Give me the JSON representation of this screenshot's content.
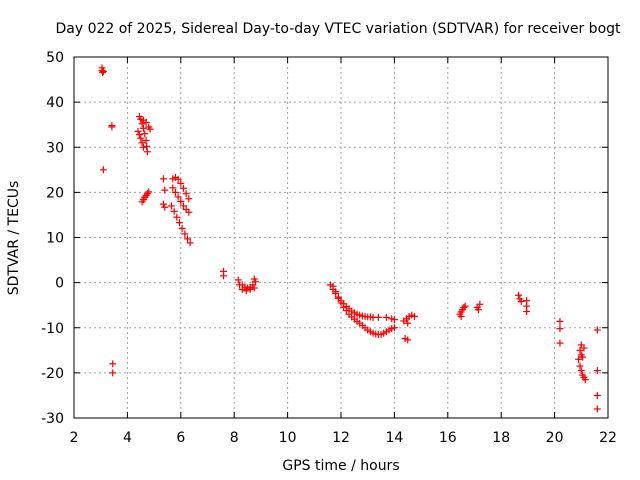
{
  "chart_data": {
    "type": "scatter",
    "title": "Day 022 of 2025, Sidereal Day-to-day VTEC variation (SDTVAR) for receiver bogt",
    "xlabel": "GPS time / hours",
    "ylabel": "SDTVAR / TECUs",
    "xlim": [
      2,
      22
    ],
    "ylim": [
      -30,
      50
    ],
    "xticks": [
      2,
      4,
      6,
      8,
      10,
      12,
      14,
      16,
      18,
      20,
      22
    ],
    "yticks": [
      -30,
      -20,
      -10,
      0,
      10,
      20,
      30,
      40,
      50
    ],
    "grid": true,
    "marker": "+",
    "color": "#ff0000",
    "series": [
      {
        "name": "SDTVAR",
        "points": [
          [
            3.05,
            47.6
          ],
          [
            3.05,
            47.0
          ],
          [
            3.07,
            46.6
          ],
          [
            3.1,
            46.8
          ],
          [
            3.1,
            25.0
          ],
          [
            3.42,
            34.8
          ],
          [
            3.42,
            34.5
          ],
          [
            3.45,
            -18.0
          ],
          [
            3.45,
            -20.0
          ],
          [
            4.45,
            36.8
          ],
          [
            4.5,
            36.2
          ],
          [
            4.55,
            35.2
          ],
          [
            4.6,
            34.2
          ],
          [
            4.65,
            33.0
          ],
          [
            4.7,
            31.5
          ],
          [
            4.72,
            30.2
          ],
          [
            4.75,
            29.0
          ],
          [
            4.4,
            33.5
          ],
          [
            4.45,
            32.8
          ],
          [
            4.5,
            32.0
          ],
          [
            4.55,
            31.0
          ],
          [
            4.6,
            30.0
          ],
          [
            4.6,
            36.0
          ],
          [
            4.7,
            35.5
          ],
          [
            4.8,
            34.5
          ],
          [
            4.85,
            34.0
          ],
          [
            4.55,
            17.9
          ],
          [
            4.6,
            18.4
          ],
          [
            4.65,
            18.9
          ],
          [
            4.7,
            19.3
          ],
          [
            4.75,
            19.7
          ],
          [
            4.8,
            20.1
          ],
          [
            5.35,
            23.0
          ],
          [
            5.4,
            20.5
          ],
          [
            5.35,
            17.4
          ],
          [
            5.4,
            16.7
          ],
          [
            5.7,
            23.0
          ],
          [
            5.8,
            23.3
          ],
          [
            5.9,
            22.9
          ],
          [
            6.0,
            22.0
          ],
          [
            6.1,
            20.9
          ],
          [
            6.2,
            19.7
          ],
          [
            6.3,
            18.6
          ],
          [
            5.7,
            21.0
          ],
          [
            5.8,
            20.0
          ],
          [
            5.9,
            19.0
          ],
          [
            6.0,
            18.0
          ],
          [
            6.1,
            17.0
          ],
          [
            6.2,
            16.2
          ],
          [
            6.3,
            15.6
          ],
          [
            5.65,
            17.0
          ],
          [
            5.75,
            15.8
          ],
          [
            5.85,
            14.5
          ],
          [
            5.95,
            13.3
          ],
          [
            6.05,
            12.0
          ],
          [
            6.15,
            10.8
          ],
          [
            6.25,
            9.7
          ],
          [
            6.35,
            8.8
          ],
          [
            7.6,
            2.5
          ],
          [
            7.6,
            1.5
          ],
          [
            8.15,
            0.6
          ],
          [
            8.3,
            -0.5
          ],
          [
            8.4,
            -1.0
          ],
          [
            8.5,
            -1.2
          ],
          [
            8.6,
            -1.0
          ],
          [
            8.7,
            -0.5
          ],
          [
            8.75,
            0.8
          ],
          [
            8.8,
            0.2
          ],
          [
            8.2,
            -0.5
          ],
          [
            8.3,
            -1.5
          ],
          [
            8.45,
            -1.8
          ],
          [
            8.6,
            -1.5
          ],
          [
            8.75,
            -1.2
          ],
          [
            11.6,
            -0.5
          ],
          [
            11.7,
            -1.5
          ],
          [
            11.8,
            -2.4
          ],
          [
            11.9,
            -3.2
          ],
          [
            12.0,
            -4.0
          ],
          [
            12.1,
            -4.7
          ],
          [
            12.2,
            -5.3
          ],
          [
            12.3,
            -5.8
          ],
          [
            12.4,
            -6.3
          ],
          [
            12.5,
            -6.7
          ],
          [
            12.6,
            -7.0
          ],
          [
            12.7,
            -7.2
          ],
          [
            12.8,
            -7.4
          ],
          [
            12.9,
            -7.5
          ],
          [
            13.0,
            -7.6
          ],
          [
            13.1,
            -7.6
          ],
          [
            13.2,
            -7.7
          ],
          [
            13.4,
            -7.7
          ],
          [
            13.7,
            -7.7
          ],
          [
            13.9,
            -8.0
          ],
          [
            14.0,
            -8.2
          ],
          [
            11.7,
            -0.8
          ],
          [
            11.8,
            -2.0
          ],
          [
            11.9,
            -3.5
          ],
          [
            12.0,
            -4.5
          ],
          [
            12.1,
            -5.5
          ],
          [
            12.2,
            -6.2
          ],
          [
            12.3,
            -7.0
          ],
          [
            12.4,
            -7.6
          ],
          [
            12.5,
            -8.1
          ],
          [
            12.6,
            -8.6
          ],
          [
            12.7,
            -9.0
          ],
          [
            12.8,
            -9.5
          ],
          [
            12.9,
            -10.0
          ],
          [
            13.0,
            -10.5
          ],
          [
            13.1,
            -10.9
          ],
          [
            13.2,
            -11.2
          ],
          [
            13.3,
            -11.4
          ],
          [
            13.4,
            -11.5
          ],
          [
            13.5,
            -11.5
          ],
          [
            13.6,
            -11.2
          ],
          [
            13.7,
            -10.9
          ],
          [
            13.8,
            -10.5
          ],
          [
            13.9,
            -10.2
          ],
          [
            14.0,
            -10.0
          ],
          [
            14.35,
            -8.5
          ],
          [
            14.45,
            -8.0
          ],
          [
            14.55,
            -7.5
          ],
          [
            14.65,
            -7.2
          ],
          [
            14.75,
            -7.5
          ],
          [
            14.5,
            -9.0
          ],
          [
            14.4,
            -12.4
          ],
          [
            14.5,
            -12.7
          ],
          [
            16.45,
            -7.0
          ],
          [
            16.5,
            -6.5
          ],
          [
            16.55,
            -6.0
          ],
          [
            16.6,
            -5.5
          ],
          [
            16.65,
            -5.2
          ],
          [
            16.5,
            -7.5
          ],
          [
            17.1,
            -5.5
          ],
          [
            17.15,
            -6.0
          ],
          [
            17.2,
            -4.8
          ],
          [
            18.65,
            -2.8
          ],
          [
            18.7,
            -3.6
          ],
          [
            18.75,
            -4.2
          ],
          [
            18.95,
            -4.0
          ],
          [
            18.95,
            -5.2
          ],
          [
            18.95,
            -6.4
          ],
          [
            20.2,
            -8.6
          ],
          [
            20.2,
            -10.2
          ],
          [
            20.2,
            -13.4
          ],
          [
            20.9,
            -17.0
          ],
          [
            20.95,
            -18.5
          ],
          [
            21.0,
            -19.5
          ],
          [
            21.05,
            -20.5
          ],
          [
            21.1,
            -21.0
          ],
          [
            21.15,
            -21.5
          ],
          [
            20.95,
            -15.0
          ],
          [
            21.0,
            -16.0
          ],
          [
            21.05,
            -16.5
          ],
          [
            21.1,
            -14.5
          ],
          [
            21.0,
            -13.8
          ],
          [
            21.6,
            -10.5
          ],
          [
            21.6,
            -19.5
          ],
          [
            21.6,
            -25.0
          ],
          [
            21.6,
            -28.0
          ]
        ]
      }
    ]
  }
}
